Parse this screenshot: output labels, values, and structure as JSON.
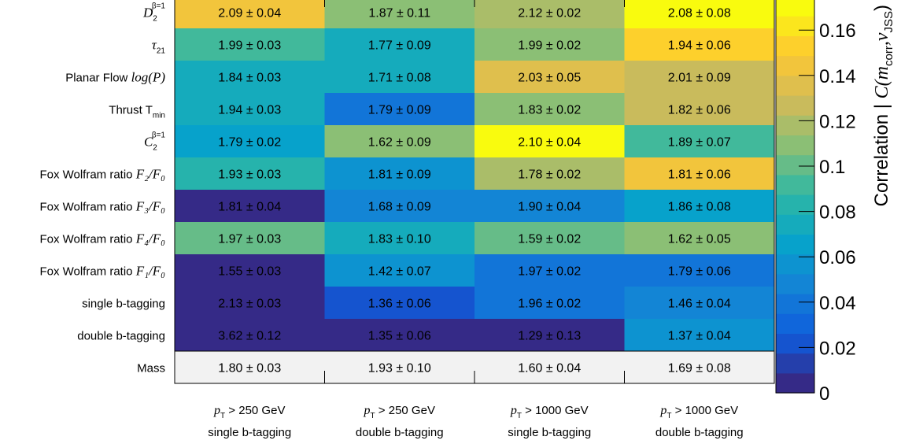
{
  "chart_data": {
    "type": "heatmap",
    "columns": [
      {
        "line1": "> 250 GeV",
        "line2": "single b-tagging"
      },
      {
        "line1": "> 250 GeV",
        "line2": "double b-tagging"
      },
      {
        "line1": "> 1000 GeV",
        "line2": "single b-tagging"
      },
      {
        "line1": "> 1000 GeV",
        "line2": "double b-tagging"
      }
    ],
    "column_var": {
      "symbol": "p",
      "subscript": "T"
    },
    "rows": [
      {
        "label_text": "",
        "math": "D",
        "sub": "2",
        "sup": "β=1",
        "cells": [
          "2.09 ± 0.04",
          "1.87 ± 0.11",
          "2.12 ± 0.02",
          "2.08 ± 0.08"
        ],
        "corr": [
          0.145,
          0.113,
          0.115,
          0.168
        ]
      },
      {
        "label_text": "",
        "math": "τ",
        "sub": "21",
        "sup": "",
        "cells": [
          "1.99 ± 0.03",
          "1.77 ± 0.09",
          "1.99 ± 0.02",
          "1.94 ± 0.06"
        ],
        "corr": [
          0.095,
          0.07,
          0.105,
          0.15
        ]
      },
      {
        "label_text": "Planar Flow ",
        "math": "log(P)",
        "sub": "",
        "sup": "",
        "cells": [
          "1.84 ± 0.03",
          "1.71 ± 0.08",
          "2.03 ± 0.05",
          "2.01 ± 0.09"
        ],
        "corr": [
          0.078,
          0.075,
          0.135,
          0.13
        ]
      },
      {
        "label_text": "Thrust T",
        "math": "",
        "sub": "min",
        "sup": "",
        "cells": [
          "1.94 ± 0.03",
          "1.79 ± 0.09",
          "1.83 ± 0.02",
          "1.82 ± 0.06"
        ],
        "corr": [
          0.07,
          0.04,
          0.105,
          0.13
        ]
      },
      {
        "label_text": "",
        "math": "C",
        "sub": "2",
        "sup": "β=1",
        "cells": [
          "1.79 ± 0.02",
          "1.62 ± 0.09",
          "2.10 ± 0.04",
          "1.89 ± 0.07"
        ],
        "corr": [
          0.065,
          0.105,
          0.168,
          0.093
        ]
      },
      {
        "label_text": "Fox Wolfram ratio ",
        "math": "F₂/F₀",
        "sub": "",
        "sup": "",
        "cells": [
          "1.93 ± 0.03",
          "1.81 ± 0.09",
          "1.78 ± 0.02",
          "1.81 ± 0.06"
        ],
        "corr": [
          0.08,
          0.055,
          0.122,
          0.145
        ]
      },
      {
        "label_text": "Fox Wolfram ratio ",
        "math": "F₃/F₀",
        "sub": "",
        "sup": "",
        "cells": [
          "1.81 ± 0.04",
          "1.68 ± 0.09",
          "1.90 ± 0.04",
          "1.86 ± 0.08"
        ],
        "corr": [
          0.003,
          0.05,
          0.045,
          0.065
        ]
      },
      {
        "label_text": "Fox Wolfram ratio ",
        "math": "F₄/F₀",
        "sub": "",
        "sup": "",
        "cells": [
          "1.97 ± 0.03",
          "1.83 ± 0.10",
          "1.59 ± 0.02",
          "1.62 ± 0.05"
        ],
        "corr": [
          0.1,
          0.075,
          0.1,
          0.113
        ]
      },
      {
        "label_text": "Fox Wolfram ratio ",
        "math": "F₁/F₀",
        "sub": "",
        "sup": "",
        "cells": [
          "1.55 ± 0.03",
          "1.42 ± 0.07",
          "1.97 ± 0.02",
          "1.79 ± 0.06"
        ],
        "corr": [
          0.003,
          0.06,
          0.035,
          0.035
        ]
      },
      {
        "label_text": "single b-tagging",
        "math": "",
        "sub": "",
        "sup": "",
        "cells": [
          "2.13 ± 0.03",
          "1.36 ± 0.06",
          "1.96 ± 0.02",
          "1.46 ± 0.04"
        ],
        "corr": [
          0.003,
          0.025,
          0.04,
          0.045
        ]
      },
      {
        "label_text": "double b-tagging",
        "math": "",
        "sub": "",
        "sup": "",
        "cells": [
          "3.62 ± 0.12",
          "1.35 ± 0.06",
          "1.29 ± 0.13",
          "1.37 ± 0.04"
        ],
        "corr": [
          0.003,
          0.003,
          0.003,
          0.06
        ]
      },
      {
        "label_text": "Mass",
        "math": "",
        "sub": "",
        "sup": "",
        "cells": [
          "1.80 ± 0.03",
          "1.93 ± 0.10",
          "1.60 ± 0.04",
          "1.69 ± 0.08"
        ],
        "corr": [
          null,
          null,
          null,
          null
        ]
      }
    ],
    "colorbar": {
      "range": [
        0,
        0.175
      ],
      "ticks": [
        0,
        0.02,
        0.04,
        0.06,
        0.08,
        0.1,
        0.12,
        0.14,
        0.16
      ],
      "tick_labels": [
        "0",
        "0.02",
        "0.04",
        "0.06",
        "0.08",
        "0.1",
        "0.12",
        "0.14",
        "0.16"
      ],
      "title_text": "Correlation | ",
      "title_math": "C(m",
      "title_sub1": "corr",
      "title_mid": ",v",
      "title_sub2": "JSS",
      "title_end": ")"
    },
    "colors": {
      "stops": [
        "#352a87",
        "#0f5cdd",
        "#1481d6",
        "#06a4ca",
        "#2eb7a4",
        "#87bf77",
        "#d1bb59",
        "#fec832",
        "#f9fb0e"
      ],
      "missing": "#f2f2f2"
    }
  }
}
